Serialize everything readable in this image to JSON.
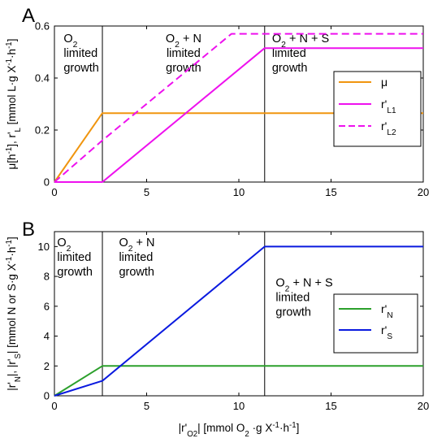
{
  "chart_data": [
    {
      "panel": "A",
      "type": "line",
      "ylabel_html": "μ[h<tspan class='sup'>-1</tspan>], r'<tspan class='sub'>L</tspan> [mmol L·g X<tspan class='sup'>-1</tspan>·h<tspan class='sup'>-1</tspan>]",
      "ylabel_parts": [
        {
          "t": "μ[h",
          "s": "n"
        },
        {
          "t": "-1",
          "s": "sup"
        },
        {
          "t": "], r'",
          "s": "n"
        },
        {
          "t": "L",
          "s": "sub"
        },
        {
          "t": " [mmol L·g X",
          "s": "n"
        },
        {
          "t": "-1",
          "s": "sup"
        },
        {
          "t": "·h",
          "s": "n"
        },
        {
          "t": "-1",
          "s": "sup"
        },
        {
          "t": "]",
          "s": "n"
        }
      ],
      "xlim": [
        0,
        20
      ],
      "ylim": [
        0,
        0.6
      ],
      "xticks": [
        "0",
        "5",
        "10",
        "15",
        "20"
      ],
      "xtick_values": [
        0,
        5,
        10,
        15,
        20
      ],
      "yticks": [
        "0",
        "0.2",
        "0.4",
        "0.6"
      ],
      "ytick_values": [
        0,
        0.2,
        0.4,
        0.6
      ],
      "vlines": [
        2.6,
        11.4
      ],
      "regions": [
        {
          "lines": [
            [
              {
                "t": "O",
                "s": "n"
              },
              {
                "t": "2",
                "s": "sub"
              }
            ],
            [
              {
                "t": "limited",
                "s": "n"
              }
            ],
            [
              {
                "t": "growth",
                "s": "n"
              }
            ]
          ],
          "x": 0.5,
          "align": "start"
        },
        {
          "lines": [
            [
              {
                "t": "O",
                "s": "n"
              },
              {
                "t": "2",
                "s": "sub"
              },
              {
                "t": " + N",
                "s": "n"
              }
            ],
            [
              {
                "t": "limited",
                "s": "n"
              }
            ],
            [
              {
                "t": "growth",
                "s": "n"
              }
            ]
          ],
          "x": 7.0,
          "align": "middle"
        },
        {
          "lines": [
            [
              {
                "t": "O",
                "s": "n"
              },
              {
                "t": "2",
                "s": "sub"
              },
              {
                "t": " + N + S",
                "s": "n"
              }
            ],
            [
              {
                "t": "limited",
                "s": "n"
              }
            ],
            [
              {
                "t": "growth",
                "s": "n"
              }
            ]
          ],
          "x": 11.8,
          "align": "start"
        }
      ],
      "series": [
        {
          "name": "μ",
          "color": "#f0950f",
          "dash": "",
          "x": [
            0,
            2.6,
            20
          ],
          "y": [
            0,
            0.265,
            0.265
          ]
        },
        {
          "name": "r'L1",
          "color": "#ee11ee",
          "dash": "",
          "x": [
            0,
            2.6,
            11.4,
            20
          ],
          "y": [
            0,
            0,
            0.515,
            0.515
          ]
        },
        {
          "name": "r'L2",
          "color": "#ee11ee",
          "dash": "9,5",
          "x": [
            0,
            2.6,
            9.6,
            20
          ],
          "y": [
            0,
            0.16,
            0.57,
            0.57
          ]
        }
      ],
      "legend": [
        [
          {
            "t": "μ",
            "s": "n"
          }
        ],
        [
          {
            "t": "r'",
            "s": "n"
          },
          {
            "t": "L1",
            "s": "sub"
          }
        ],
        [
          {
            "t": "r'",
            "s": "n"
          },
          {
            "t": "L2",
            "s": "sub"
          }
        ]
      ],
      "legend_placement": "top-right"
    },
    {
      "panel": "B",
      "type": "line",
      "ylabel_parts": [
        {
          "t": "|r'",
          "s": "n"
        },
        {
          "t": "N",
          "s": "sub"
        },
        {
          "t": "|, |r'",
          "s": "n"
        },
        {
          "t": "S",
          "s": "sub"
        },
        {
          "t": "| [mmol N or S·g X",
          "s": "n"
        },
        {
          "t": "-1",
          "s": "sup"
        },
        {
          "t": "·h",
          "s": "n"
        },
        {
          "t": "-1",
          "s": "sup"
        },
        {
          "t": "]",
          "s": "n"
        }
      ],
      "xlabel_parts": [
        {
          "t": "|r'",
          "s": "n"
        },
        {
          "t": "O2",
          "s": "sub"
        },
        {
          "t": "| [mmol O",
          "s": "n"
        },
        {
          "t": "2",
          "s": "sub"
        },
        {
          "t": " ·g X",
          "s": "n"
        },
        {
          "t": "-1",
          "s": "sup"
        },
        {
          "t": "·h",
          "s": "n"
        },
        {
          "t": "-1",
          "s": "sup"
        },
        {
          "t": "]",
          "s": "n"
        }
      ],
      "xlim": [
        0,
        20
      ],
      "ylim": [
        0,
        11
      ],
      "xticks": [
        "0",
        "5",
        "10",
        "15",
        "20"
      ],
      "xtick_values": [
        0,
        5,
        10,
        15,
        20
      ],
      "yticks": [
        "0",
        "2",
        "4",
        "6",
        "8",
        "10"
      ],
      "ytick_values": [
        0,
        2,
        4,
        6,
        8,
        10
      ],
      "vlines": [
        2.6,
        11.4
      ],
      "regions": [
        {
          "lines": [
            [
              {
                "t": "O",
                "s": "n"
              },
              {
                "t": "2",
                "s": "sub"
              }
            ],
            [
              {
                "t": "limited",
                "s": "n"
              }
            ],
            [
              {
                "t": "growth",
                "s": "n"
              }
            ]
          ],
          "x": 0.15,
          "ytop": 10.9,
          "align": "start"
        },
        {
          "lines": [
            [
              {
                "t": "O",
                "s": "n"
              },
              {
                "t": "2",
                "s": "sub"
              },
              {
                "t": " + N",
                "s": "n"
              }
            ],
            [
              {
                "t": "limited",
                "s": "n"
              }
            ],
            [
              {
                "t": "growth",
                "s": "n"
              }
            ]
          ],
          "x": 3.5,
          "ytop": 10.9,
          "align": "start"
        },
        {
          "lines": [
            [
              {
                "t": "O",
                "s": "n"
              },
              {
                "t": "2",
                "s": "sub"
              },
              {
                "t": " + N + S",
                "s": "n"
              }
            ],
            [
              {
                "t": "limited",
                "s": "n"
              }
            ],
            [
              {
                "t": "growth",
                "s": "n"
              }
            ]
          ],
          "x": 12.0,
          "ytop": 8.2,
          "align": "start"
        }
      ],
      "series": [
        {
          "name": "r'N",
          "color": "#2ca02c",
          "dash": "",
          "x": [
            0,
            2.6,
            20
          ],
          "y": [
            0,
            2,
            2
          ]
        },
        {
          "name": "r'S",
          "color": "#0a1adf",
          "dash": "",
          "x": [
            0,
            2.6,
            11.4,
            20
          ],
          "y": [
            0,
            1,
            10,
            10
          ]
        }
      ],
      "legend": [
        [
          {
            "t": "r'",
            "s": "n"
          },
          {
            "t": "N",
            "s": "sub"
          }
        ],
        [
          {
            "t": "r'",
            "s": "n"
          },
          {
            "t": "S",
            "s": "sub"
          }
        ]
      ],
      "legend_placement": "right"
    }
  ]
}
